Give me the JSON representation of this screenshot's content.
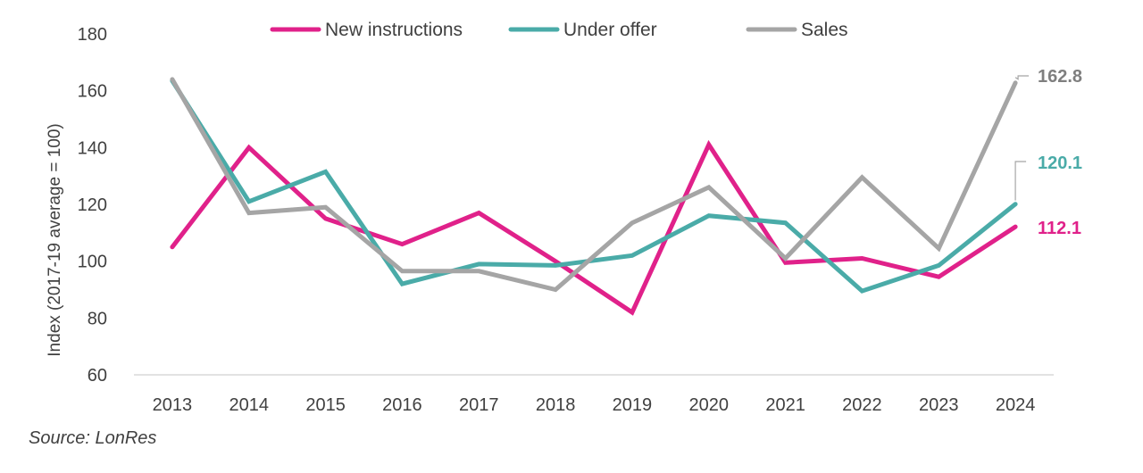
{
  "chart_data": {
    "type": "line",
    "title": "",
    "xlabel": "",
    "ylabel": "Index (2017-19 average = 100)",
    "ylim": [
      60,
      180
    ],
    "yticks": [
      60,
      80,
      100,
      120,
      140,
      160,
      180
    ],
    "grid": false,
    "legend_position": "top-center",
    "categories": [
      "2013",
      "2014",
      "2015",
      "2016",
      "2017",
      "2018",
      "2019",
      "2020",
      "2021",
      "2022",
      "2023",
      "2024"
    ],
    "series": [
      {
        "name": "New instructions",
        "color": "#E0218A",
        "values": [
          105,
          140,
          115,
          106,
          117,
          100,
          82,
          141,
          99.5,
          101,
          94.5,
          112.1
        ],
        "end_label": "112.1"
      },
      {
        "name": "Under offer",
        "color": "#4AABA8",
        "values": [
          163.5,
          121,
          131.5,
          92,
          99,
          98.5,
          102,
          116,
          113.5,
          89.5,
          98.5,
          120.1
        ],
        "end_label": "120.1"
      },
      {
        "name": "Sales",
        "color": "#A5A5A5",
        "values": [
          164,
          117,
          119,
          96.5,
          96.5,
          90,
          113.5,
          126,
          101,
          129.5,
          104.5,
          162.8
        ],
        "end_label": "162.8"
      }
    ]
  },
  "source_note": "Source: LonRes",
  "end_label_colors": {
    "Sales": "#7F7F7F",
    "Under offer": "#4AABA8",
    "New instructions": "#E0218A"
  }
}
